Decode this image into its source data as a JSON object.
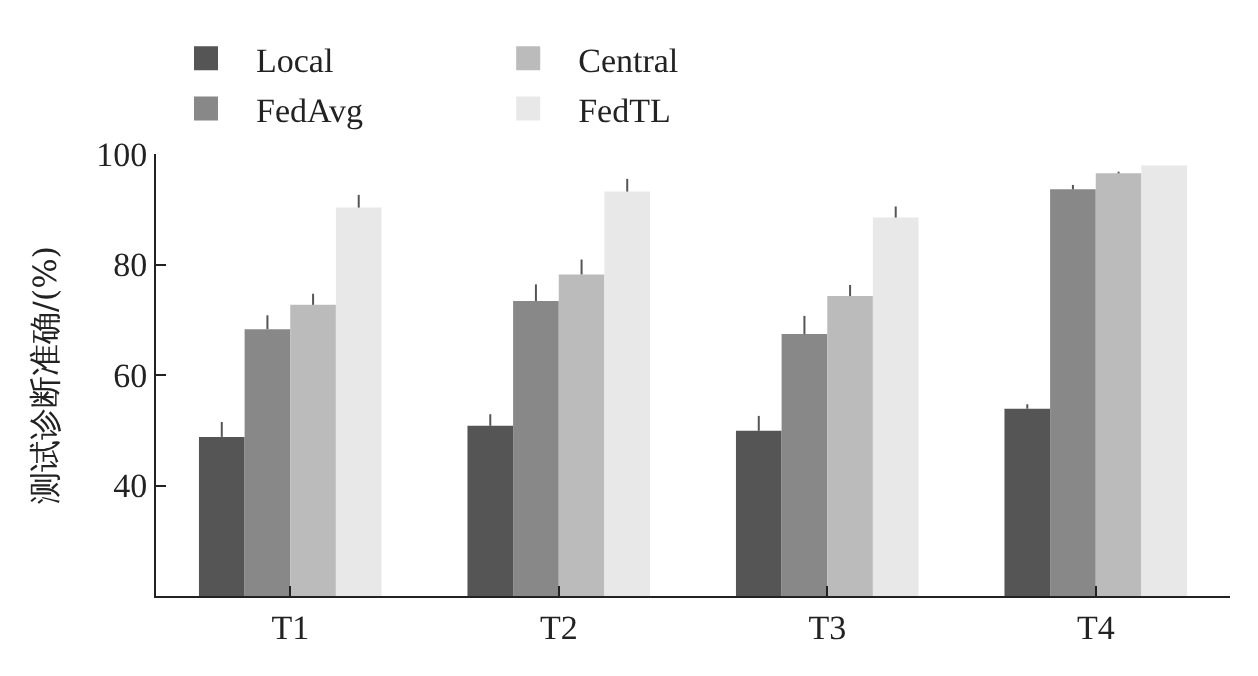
{
  "chart_data": {
    "type": "bar",
    "ylabel": "测试诊断准确/(%)",
    "categories": [
      "T1",
      "T2",
      "T3",
      "T4"
    ],
    "series": [
      {
        "name": "Local",
        "color": "#555555",
        "values": [
          48.8,
          50.8,
          49.9,
          53.9
        ],
        "errors": [
          [
            48.8,
            51.5
          ],
          [
            50.8,
            52.9
          ],
          [
            49.9,
            52.6
          ],
          [
            53.9,
            54.7
          ]
        ]
      },
      {
        "name": "FedAvg",
        "color": "#888888",
        "values": [
          68.3,
          73.4,
          67.4,
          93.6
        ],
        "errors": [
          [
            68.3,
            70.8
          ],
          [
            73.4,
            76.4
          ],
          [
            67.4,
            70.7
          ],
          [
            93.6,
            94.4
          ]
        ]
      },
      {
        "name": "Central",
        "color": "#bbbbbb",
        "values": [
          72.7,
          78.2,
          74.3,
          96.5
        ],
        "errors": [
          [
            72.7,
            74.7
          ],
          [
            78.2,
            80.9
          ],
          [
            74.3,
            76.3
          ],
          [
            96.5,
            96.8
          ]
        ]
      },
      {
        "name": "FedTL",
        "color": "#e8e8e8",
        "values": [
          90.3,
          93.2,
          88.5,
          97.9
        ],
        "errors": [
          [
            90.3,
            92.6
          ],
          [
            93.2,
            95.5
          ],
          [
            88.5,
            90.5
          ],
          null
        ]
      }
    ],
    "ylim": [
      20,
      100
    ],
    "yticks": [
      40,
      60,
      80,
      100
    ],
    "legend": "top left"
  }
}
